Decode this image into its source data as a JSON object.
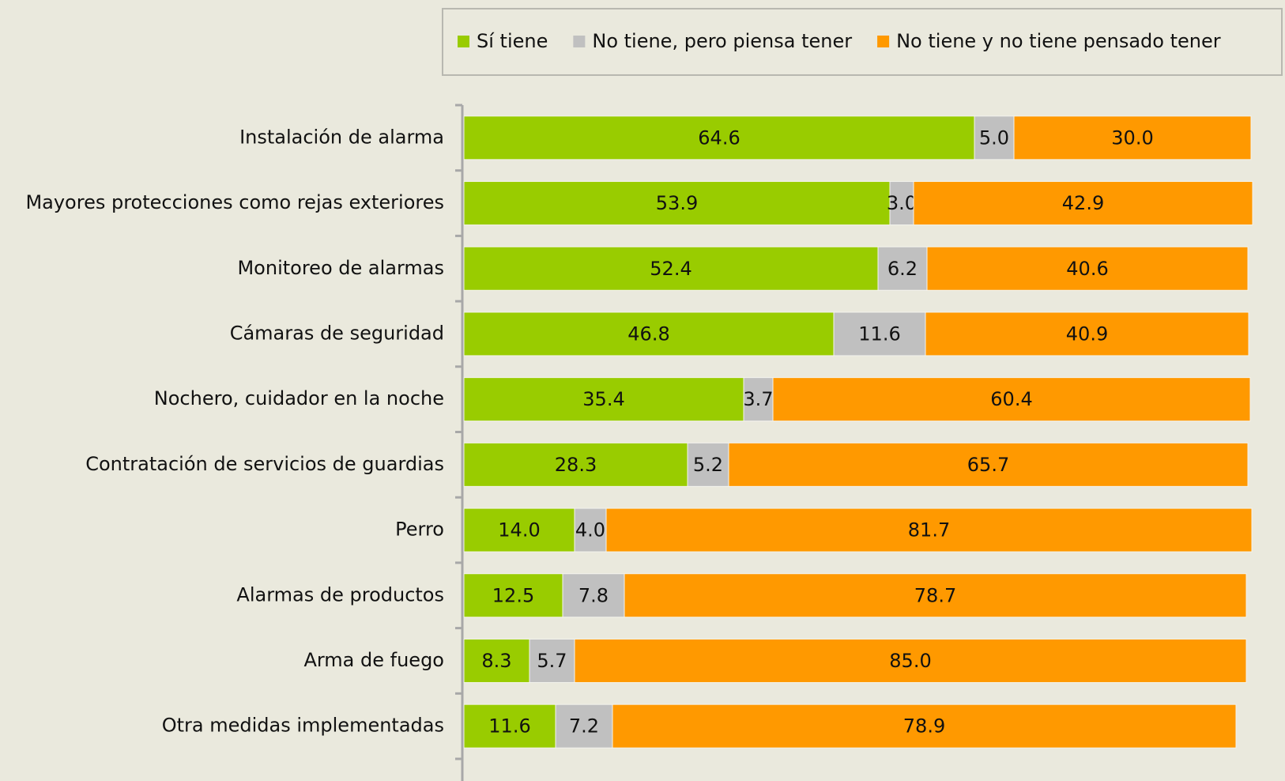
{
  "chart_data": {
    "type": "stacked_barh",
    "categories": [
      "Instalación de alarma",
      "Mayores protecciones como rejas exteriores",
      "Monitoreo de alarmas",
      "Cámaras de seguridad",
      "Nochero, cuidador en la noche",
      "Contratación de servicios de guardias",
      "Perro",
      "Alarmas de productos",
      "Arma de fuego",
      "Otra medidas implementadas"
    ],
    "series": [
      {
        "name": "Sí tiene",
        "color": "#99cc00",
        "values": [
          64.6,
          53.9,
          52.4,
          46.8,
          35.4,
          28.3,
          14.0,
          12.5,
          8.3,
          11.6
        ],
        "value_labels": [
          "64.6",
          "53.9",
          "52.4",
          "46.8",
          "35.4",
          "28.3",
          "14.0",
          "12.5",
          "8.3",
          "11.6"
        ]
      },
      {
        "name": "No tiene, pero piensa tener",
        "color": "#c0c0c0",
        "values": [
          5.0,
          3.0,
          6.2,
          11.6,
          3.7,
          5.2,
          4.0,
          7.8,
          5.7,
          7.2
        ],
        "value_labels": [
          "5.0",
          "3.0",
          "6.2",
          "11.6",
          "3.7",
          "5.2",
          "4.0",
          "7.8",
          "5.7",
          "7.2"
        ]
      },
      {
        "name": "No tiene y no tiene pensado tener",
        "color": "#ff9900",
        "values": [
          30.0,
          42.9,
          40.6,
          40.9,
          60.4,
          65.7,
          81.7,
          78.7,
          85.0,
          78.9
        ],
        "value_labels": [
          "30.0",
          "42.9",
          "40.6",
          "40.9",
          "60.4",
          "65.7",
          "81.7",
          "78.7",
          "85.0",
          "78.9"
        ]
      }
    ],
    "xlim": [
      0,
      100
    ],
    "legend": "top"
  }
}
